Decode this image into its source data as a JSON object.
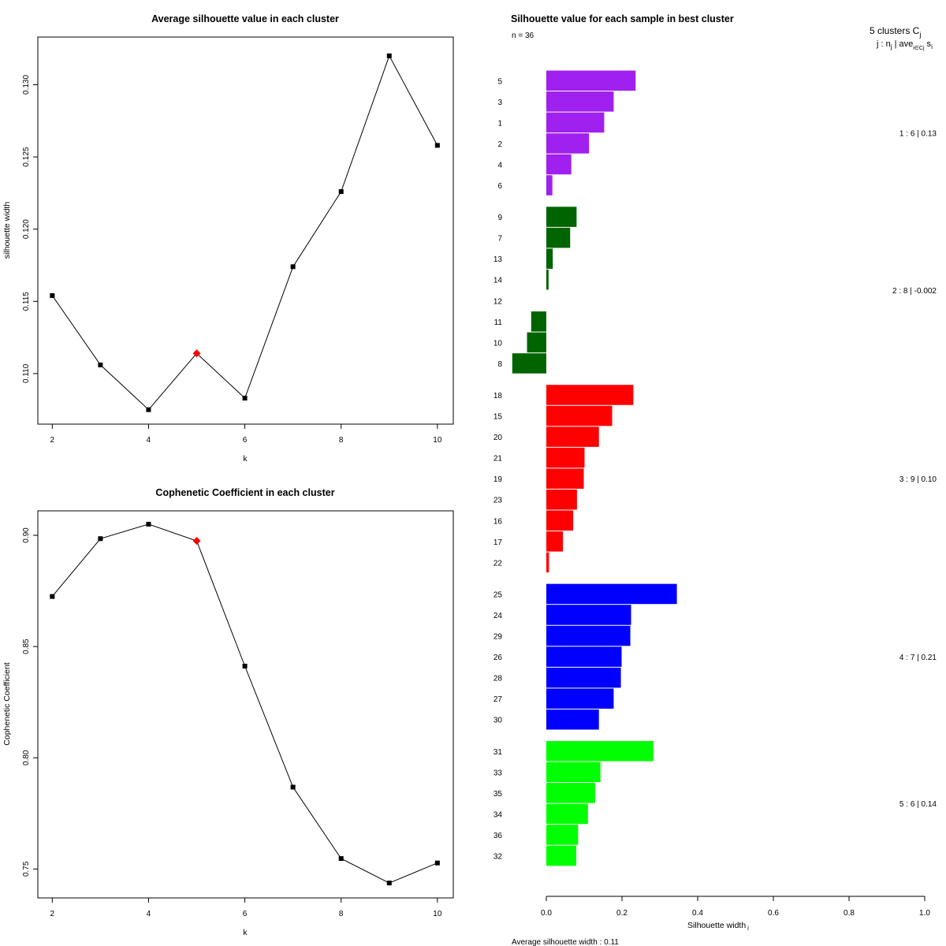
{
  "chart_data": [
    {
      "type": "line",
      "title": "Average silhouette value in each cluster",
      "xlabel": "k",
      "ylabel": "silhouette width",
      "x": [
        2,
        3,
        4,
        5,
        6,
        7,
        8,
        9,
        10
      ],
      "values": [
        0.1154,
        0.1106,
        0.1075,
        0.1114,
        0.1083,
        0.1174,
        0.1226,
        0.132,
        0.1258
      ],
      "highlight_x": 5,
      "xlim": [
        1.7,
        10.33
      ],
      "ylim": [
        0.1065,
        0.1333
      ],
      "xticks": [
        2,
        4,
        6,
        8,
        10
      ],
      "yticks": [
        0.11,
        0.115,
        0.12,
        0.125,
        0.13
      ],
      "ytick_labels": [
        "0.110",
        "0.115",
        "0.120",
        "0.125",
        "0.130"
      ]
    },
    {
      "type": "line",
      "title": "Cophenetic Coefficient in each cluster",
      "xlabel": "k",
      "ylabel": "Cophenetic Coefficient",
      "x": [
        2,
        3,
        4,
        5,
        6,
        7,
        8,
        9,
        10
      ],
      "values": [
        0.8725,
        0.8985,
        0.905,
        0.8975,
        0.8412,
        0.7868,
        0.7547,
        0.7437,
        0.7527
      ],
      "highlight_x": 5,
      "xlim": [
        1.7,
        10.33
      ],
      "ylim": [
        0.737,
        0.911
      ],
      "xticks": [
        2,
        4,
        6,
        8,
        10
      ],
      "yticks": [
        0.75,
        0.8,
        0.85,
        0.9
      ],
      "ytick_labels": [
        "0.75",
        "0.80",
        "0.85",
        "0.90"
      ]
    },
    {
      "type": "bar",
      "orientation": "horizontal",
      "title": "Silhouette value for each sample in best cluster",
      "subtitle": "n = 36",
      "xlabel": "Silhouette width",
      "xlabel_sub": "i",
      "xlim": [
        0,
        1
      ],
      "xticks": [
        0.0,
        0.2,
        0.4,
        0.6,
        0.8,
        1.0
      ],
      "xtick_labels": [
        "0.0",
        "0.2",
        "0.4",
        "0.6",
        "0.8",
        "1.0"
      ],
      "legend_header": "5  clusters  C",
      "legend_header_sub": "j",
      "legend_sub_header": "j :  n",
      "legend_sub_header_sub": "j",
      "legend_sub_header_mid": " | ave",
      "legend_sub_header_sub2": "i∈Cj",
      "legend_sub_header_end": " s",
      "legend_sub_header_sub3": "i",
      "footer": "Average silhouette width :  0.11",
      "clusters": [
        {
          "id": 1,
          "color": "#a020f0",
          "summary": "1 :   6  |  0.13",
          "labels": [
            "5",
            "3",
            "1",
            "2",
            "4",
            "6"
          ],
          "values": [
            0.236,
            0.178,
            0.153,
            0.113,
            0.066,
            0.016
          ]
        },
        {
          "id": 2,
          "color": "#006400",
          "summary": "2 :   8  |  -0.002",
          "labels": [
            "9",
            "7",
            "13",
            "14",
            "12",
            "11",
            "10",
            "8"
          ],
          "values": [
            0.08,
            0.063,
            0.017,
            0.006,
            0.0,
            -0.04,
            -0.051,
            -0.09
          ]
        },
        {
          "id": 3,
          "color": "#ff0000",
          "summary": "3 :   9  |  0.10",
          "labels": [
            "18",
            "15",
            "20",
            "21",
            "19",
            "23",
            "16",
            "17",
            "22"
          ],
          "values": [
            0.23,
            0.174,
            0.139,
            0.101,
            0.099,
            0.081,
            0.071,
            0.044,
            0.007
          ]
        },
        {
          "id": 4,
          "color": "#0000ff",
          "summary": "4 :   7  |  0.21",
          "labels": [
            "25",
            "24",
            "29",
            "26",
            "28",
            "27",
            "30"
          ],
          "values": [
            0.345,
            0.224,
            0.222,
            0.199,
            0.197,
            0.178,
            0.139
          ]
        },
        {
          "id": 5,
          "color": "#00ff00",
          "summary": "5 :   6  |  0.14",
          "labels": [
            "31",
            "33",
            "35",
            "34",
            "36",
            "32"
          ],
          "values": [
            0.283,
            0.143,
            0.129,
            0.11,
            0.084,
            0.079
          ]
        }
      ]
    }
  ]
}
